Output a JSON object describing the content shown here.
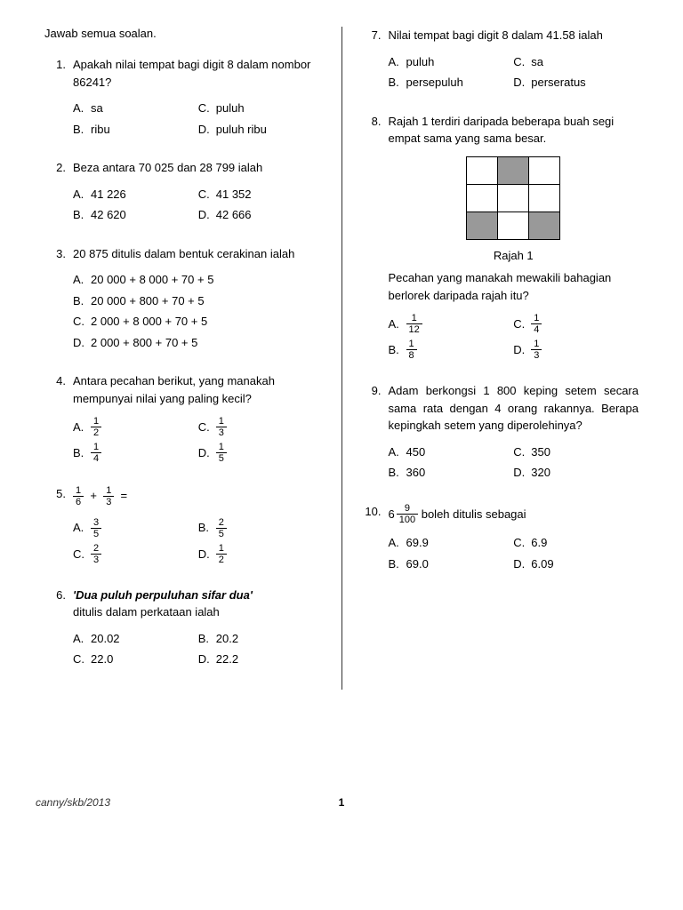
{
  "instruction": "Jawab semua soalan.",
  "left": {
    "q1": {
      "num": "1.",
      "text": "Apakah nilai tempat bagi digit 8 dalam nombor 86241?",
      "A": "sa",
      "B": "ribu",
      "C": "puluh",
      "D": "puluh ribu"
    },
    "q2": {
      "num": "2.",
      "text": "Beza antara 70 025 dan 28 799 ialah",
      "A": "41 226",
      "B": "42 620",
      "C": "41 352",
      "D": "42 666"
    },
    "q3": {
      "num": "3.",
      "text": "20 875 ditulis dalam bentuk cerakinan ialah",
      "A": "20 000 + 8 000 + 70 + 5",
      "B": "20 000 + 800 + 70 + 5",
      "C": "2 000 + 8 000 + 70 + 5",
      "D": "2 000 + 800 + 70 + 5"
    },
    "q4": {
      "num": "4.",
      "text": "Antara pecahan berikut, yang manakah mempunyai nilai yang paling kecil?",
      "A": {
        "n": "1",
        "d": "2"
      },
      "B": {
        "n": "1",
        "d": "4"
      },
      "C": {
        "n": "1",
        "d": "3"
      },
      "D": {
        "n": "1",
        "d": "5"
      }
    },
    "q5": {
      "num": "5.",
      "lhs1": {
        "n": "1",
        "d": "6"
      },
      "plus": "+",
      "lhs2": {
        "n": "1",
        "d": "3"
      },
      "eq": "=",
      "A": {
        "n": "3",
        "d": "5"
      },
      "B": {
        "n": "2",
        "d": "5"
      },
      "C": {
        "n": "2",
        "d": "3"
      },
      "D": {
        "n": "1",
        "d": "2"
      }
    },
    "q6": {
      "num": "6.",
      "boldline": "'Dua puluh perpuluhan sifar dua'",
      "text2": "ditulis dalam perkataan ialah",
      "A": "20.02",
      "B": "20.2",
      "C": "22.0",
      "D": "22.2"
    }
  },
  "right": {
    "q7": {
      "num": "7.",
      "text": "Nilai tempat bagi digit 8 dalam 41.58 ialah",
      "A": "puluh",
      "B": "persepuluh",
      "C": "sa",
      "D": "perseratus"
    },
    "q8": {
      "num": "8.",
      "text": "Rajah 1 terdiri daripada beberapa buah segi empat sama yang sama besar.",
      "caption": "Rajah 1",
      "text2": "Pecahan yang manakah mewakili bahagian berlorek daripada rajah itu?",
      "A": {
        "n": "1",
        "d": "12"
      },
      "B": {
        "n": "1",
        "d": "8"
      },
      "C": {
        "n": "1",
        "d": "4"
      },
      "D": {
        "n": "1",
        "d": "3"
      },
      "shaded": [
        [
          0,
          1,
          0
        ],
        [
          0,
          0,
          0
        ],
        [
          1,
          0,
          1
        ]
      ]
    },
    "q9": {
      "num": "9.",
      "text": "Adam berkongsi 1 800 keping setem secara sama rata dengan 4 orang rakannya. Berapa kepingkah setem yang diperolehinya?",
      "A": "450",
      "B": "360",
      "C": "350",
      "D": "320"
    },
    "q10": {
      "num": "10.",
      "whole": "6",
      "n": "9",
      "d": "100",
      "tail": " boleh ditulis sebagai",
      "A": "69.9",
      "B": "69.0",
      "C": "6.9",
      "D": "6.09"
    }
  },
  "footer": {
    "credit": "canny/skb/2013",
    "page": "1"
  }
}
